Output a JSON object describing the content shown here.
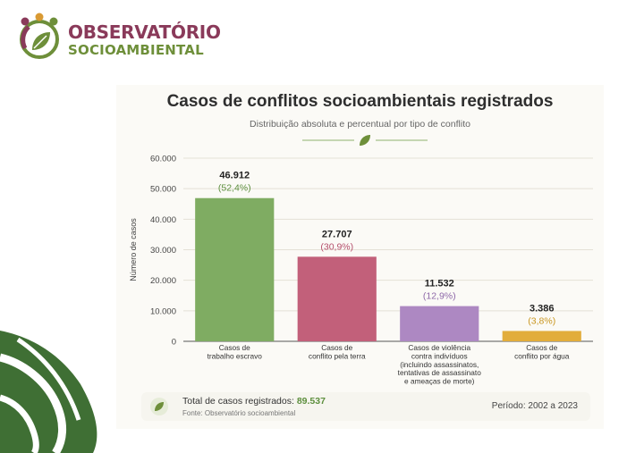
{
  "brand": {
    "line1": "OBSERVATÓRIO",
    "line2": "SOCIOAMBIENTAL",
    "logo_icon": "leaf-people-logo",
    "colors": {
      "purple": "#8a3a5a",
      "green": "#6e8f3a",
      "orange": "#d99a34"
    }
  },
  "chart_data": {
    "type": "bar",
    "title": "Casos de conflitos socioambientais registrados",
    "subtitle": "Distribuição absoluta e percentual por tipo de conflito",
    "ylabel": "Número de casos",
    "xlabel": "",
    "ylim": [
      0,
      60000
    ],
    "yticks": [
      0,
      10000,
      20000,
      30000,
      40000,
      50000,
      60000
    ],
    "ytick_labels": [
      "0",
      "10.000",
      "20.000",
      "30.000",
      "40.000",
      "50.000",
      "60.000"
    ],
    "grid": true,
    "categories": [
      [
        "Casos de",
        "trabalho escravo"
      ],
      [
        "Casos de",
        "conflito pela terra"
      ],
      [
        "Casos de violência",
        "contra indivíduos",
        "(incluindo assassinatos,",
        "tentativas de assassinato",
        "e ameaças de morte)"
      ],
      [
        "Casos de",
        "conflito por água"
      ]
    ],
    "values": [
      46912,
      27707,
      11532,
      3386
    ],
    "value_labels": [
      "46.912",
      "27.707",
      "11.532",
      "3.386"
    ],
    "percent_labels": [
      "(52,4%)",
      "(30,9%)",
      "(12,9%)",
      "(3,8%)"
    ],
    "colors": [
      "#7fac62",
      "#c2607a",
      "#ad88c2",
      "#e2ad3b"
    ],
    "percent_colors": [
      "#5d8f3e",
      "#b5506c",
      "#8e68a8",
      "#c99620"
    ]
  },
  "footer": {
    "total_label": "Total de casos registrados:",
    "total_value": "89.537",
    "source": "Fonte: Observatório socioambiental",
    "period": "Período: 2002 a 2023",
    "leaf_icon": "leaf-icon"
  }
}
